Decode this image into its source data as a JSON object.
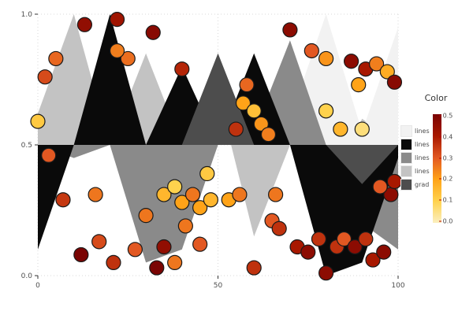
{
  "chart_data": {
    "type": "area",
    "title": "",
    "xlabel": "",
    "ylabel": "",
    "xlim": [
      0,
      100
    ],
    "ylim": [
      0,
      1
    ],
    "xticks": [
      0,
      50,
      100
    ],
    "xtick_labels": [
      "0",
      "50",
      "100"
    ],
    "yticks": [
      0,
      0.5,
      1
    ],
    "ytick_labels": [
      "0.0",
      "0.5",
      "1.0"
    ],
    "grid": "dotted",
    "baseline": 0.5,
    "x": [
      0,
      10,
      20,
      30,
      40,
      50,
      60,
      70,
      80,
      90,
      100
    ],
    "ribbons": [
      {
        "name": "lines",
        "color": "#c3c3c3",
        "values": [
          0.62,
          1.0,
          0.5,
          0.85,
          0.5,
          0.7,
          0.15,
          0.5,
          0.3,
          0.6,
          0.5
        ]
      },
      {
        "name": "lines",
        "color": "#f2f2f2",
        "values": [
          0.5,
          0.5,
          0.5,
          0.5,
          0.5,
          0.5,
          0.5,
          0.6,
          1.0,
          0.55,
          0.95
        ]
      },
      {
        "name": "lines",
        "color": "#8a8a8a",
        "values": [
          0.5,
          0.45,
          0.5,
          0.05,
          0.1,
          0.5,
          0.55,
          0.9,
          0.5,
          0.2,
          0.1
        ]
      },
      {
        "name": "lines",
        "color": "#0a0a0a",
        "values": [
          0.1,
          0.5,
          1.0,
          0.5,
          0.8,
          0.5,
          0.85,
          0.5,
          0.0,
          0.05,
          0.45
        ]
      },
      {
        "name": "grad",
        "color": "#4d4d4d",
        "values": [
          0.5,
          0.5,
          0.5,
          0.5,
          0.5,
          0.85,
          0.5,
          0.5,
          0.5,
          0.35,
          0.5
        ]
      }
    ],
    "scatter": {
      "name": "grad",
      "color_range": [
        0,
        0.5
      ],
      "points": [
        [
          13,
          0.96,
          0.45
        ],
        [
          22,
          0.98,
          0.42
        ],
        [
          32,
          0.93,
          0.47
        ],
        [
          70,
          0.94,
          0.46
        ],
        [
          5,
          0.83,
          0.28
        ],
        [
          2,
          0.76,
          0.32
        ],
        [
          25,
          0.83,
          0.27
        ],
        [
          40,
          0.79,
          0.38
        ],
        [
          22,
          0.86,
          0.25
        ],
        [
          76,
          0.86,
          0.3
        ],
        [
          80,
          0.83,
          0.22
        ],
        [
          87,
          0.82,
          0.46
        ],
        [
          91,
          0.79,
          0.4
        ],
        [
          94,
          0.81,
          0.25
        ],
        [
          97,
          0.78,
          0.18
        ],
        [
          99,
          0.74,
          0.47
        ],
        [
          89,
          0.73,
          0.2
        ],
        [
          0,
          0.59,
          0.12
        ],
        [
          57,
          0.66,
          0.2
        ],
        [
          60,
          0.63,
          0.14
        ],
        [
          62,
          0.58,
          0.22
        ],
        [
          55,
          0.56,
          0.36
        ],
        [
          64,
          0.54,
          0.25
        ],
        [
          58,
          0.73,
          0.28
        ],
        [
          80,
          0.63,
          0.1
        ],
        [
          84,
          0.56,
          0.16
        ],
        [
          90,
          0.56,
          0.06
        ],
        [
          3,
          0.46,
          0.3
        ],
        [
          7,
          0.29,
          0.35
        ],
        [
          12,
          0.08,
          0.5
        ],
        [
          17,
          0.13,
          0.32
        ],
        [
          21,
          0.05,
          0.36
        ],
        [
          27,
          0.1,
          0.3
        ],
        [
          33,
          0.03,
          0.5
        ],
        [
          35,
          0.11,
          0.45
        ],
        [
          38,
          0.05,
          0.26
        ],
        [
          30,
          0.23,
          0.26
        ],
        [
          35,
          0.31,
          0.16
        ],
        [
          38,
          0.34,
          0.1
        ],
        [
          40,
          0.28,
          0.2
        ],
        [
          43,
          0.31,
          0.26
        ],
        [
          45,
          0.26,
          0.2
        ],
        [
          47,
          0.39,
          0.12
        ],
        [
          48,
          0.29,
          0.16
        ],
        [
          41,
          0.19,
          0.26
        ],
        [
          45,
          0.12,
          0.3
        ],
        [
          53,
          0.29,
          0.2
        ],
        [
          56,
          0.31,
          0.26
        ],
        [
          60,
          0.03,
          0.36
        ],
        [
          65,
          0.21,
          0.3
        ],
        [
          67,
          0.18,
          0.36
        ],
        [
          72,
          0.11,
          0.4
        ],
        [
          75,
          0.09,
          0.46
        ],
        [
          78,
          0.14,
          0.36
        ],
        [
          80,
          0.01,
          0.46
        ],
        [
          83,
          0.11,
          0.36
        ],
        [
          85,
          0.14,
          0.3
        ],
        [
          88,
          0.11,
          0.46
        ],
        [
          91,
          0.14,
          0.36
        ],
        [
          93,
          0.06,
          0.4
        ],
        [
          96,
          0.09,
          0.46
        ],
        [
          98,
          0.31,
          0.46
        ],
        [
          95,
          0.34,
          0.3
        ],
        [
          99,
          0.36,
          0.4
        ],
        [
          66,
          0.31,
          0.26
        ],
        [
          16,
          0.31,
          0.26
        ]
      ]
    },
    "legend": {
      "position": "right",
      "title": "Color",
      "colorbar": {
        "min": 0.0,
        "max": 0.5,
        "ticks": [
          "0.5",
          "0.4",
          "0.3",
          "0.2",
          "0.1",
          "0.0"
        ],
        "stops": [
          "#FBEFBF",
          "#FFD24D",
          "#FFA318",
          "#E25822",
          "#A81800",
          "#7A0403"
        ]
      },
      "entries": [
        {
          "label": "lines",
          "color": "#f2f2f2"
        },
        {
          "label": "lines",
          "color": "#0a0a0a"
        },
        {
          "label": "lines",
          "color": "#8a8a8a"
        },
        {
          "label": "lines",
          "color": "#c3c3c3"
        },
        {
          "label": "grad",
          "color": "#4d4d4d"
        }
      ]
    },
    "style": {
      "grid_color": "#d9d9d9",
      "tick_label_color": "#4d4d4d",
      "point_edge_color": "#1a1a1a",
      "point_radius": 9
    }
  }
}
